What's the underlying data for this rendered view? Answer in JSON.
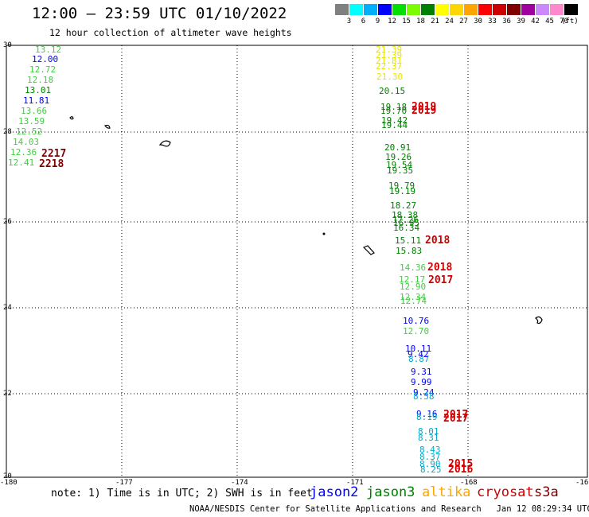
{
  "header": {
    "title": "12:00 – 23:59 UTC 01/10/2022",
    "subtitle": "12 hour collection of altimeter wave heights"
  },
  "colorbar": {
    "colors": [
      "#808080",
      "#00ffff",
      "#00b0ff",
      "#0000ff",
      "#00e000",
      "#7cfc00",
      "#008000",
      "#ffff00",
      "#ffd700",
      "#ffa500",
      "#ff0000",
      "#cc0000",
      "#800000",
      "#a000a0",
      "#cc88ff",
      "#ff88cc",
      "#000000"
    ],
    "labels": [
      "3",
      "6",
      "9",
      "12",
      "15",
      "18",
      "21",
      "24",
      "27",
      "30",
      "33",
      "36",
      "39",
      "42",
      "45",
      "70"
    ],
    "unit": "(ft)"
  },
  "map": {
    "y_labels": [
      "30",
      "28",
      "26",
      "24",
      "22",
      "20"
    ],
    "x_labels": [
      "-180",
      "-177",
      "-174",
      "-171",
      "-168",
      "-16"
    ],
    "colors": {
      "jason2": "#0000ff",
      "jason3": "#008000",
      "altika": "#ffa500",
      "cryosat": "#cc0000",
      "s3a": "#800000",
      "light_green": "#44cc44",
      "cyan": "#00aacc",
      "yellow": "#e6e600"
    },
    "observations": [
      {
        "t": "13.12",
        "c": "light_green"
      },
      {
        "t": "12.00",
        "c": "jason2"
      },
      {
        "t": "12.72",
        "c": "light_green"
      },
      {
        "t": "12.18",
        "c": "light_green"
      },
      {
        "t": "13.01",
        "c": "jason3"
      },
      {
        "t": "11.81",
        "c": "jason2"
      },
      {
        "t": "13.66",
        "c": "light_green"
      },
      {
        "t": "13.59",
        "c": "light_green"
      },
      {
        "t": "12.52",
        "c": "light_green"
      },
      {
        "t": "14.03",
        "c": "light_green"
      },
      {
        "t": "12.36",
        "c": "light_green"
      },
      {
        "t": "12.41",
        "c": "light_green"
      },
      {
        "t": "21.39",
        "c": "yellow"
      },
      {
        "t": "21.39",
        "c": "yellow"
      },
      {
        "t": "21.81",
        "c": "yellow"
      },
      {
        "t": "22.37",
        "c": "yellow"
      },
      {
        "t": "21.30",
        "c": "yellow"
      },
      {
        "t": "20.15",
        "c": "jason3"
      },
      {
        "t": "19.18",
        "c": "jason3"
      },
      {
        "t": "19.70",
        "c": "jason3"
      },
      {
        "t": "19.42",
        "c": "jason3"
      },
      {
        "t": "19.44",
        "c": "jason3"
      },
      {
        "t": "20.91",
        "c": "jason3"
      },
      {
        "t": "19.26",
        "c": "jason3"
      },
      {
        "t": "19.54",
        "c": "jason3"
      },
      {
        "t": "19.35",
        "c": "jason3"
      },
      {
        "t": "19.79",
        "c": "jason3"
      },
      {
        "t": "19.19",
        "c": "jason3"
      },
      {
        "t": "18.27",
        "c": "jason3"
      },
      {
        "t": "18.38",
        "c": "jason3"
      },
      {
        "t": "17.26",
        "c": "jason3"
      },
      {
        "t": "16.95",
        "c": "jason3"
      },
      {
        "t": "16.34",
        "c": "jason3"
      },
      {
        "t": "15.11",
        "c": "jason3"
      },
      {
        "t": "15.83",
        "c": "jason3"
      },
      {
        "t": "14.36",
        "c": "light_green"
      },
      {
        "t": "12.17",
        "c": "light_green"
      },
      {
        "t": "12.90",
        "c": "light_green"
      },
      {
        "t": "12.34",
        "c": "light_green"
      },
      {
        "t": "12.74",
        "c": "light_green"
      },
      {
        "t": "10.76",
        "c": "jason2"
      },
      {
        "t": "12.70",
        "c": "light_green"
      },
      {
        "t": "10.11",
        "c": "jason2"
      },
      {
        "t": "9.42",
        "c": "jason2"
      },
      {
        "t": "8.87",
        "c": "cyan"
      },
      {
        "t": "9.31",
        "c": "jason2"
      },
      {
        "t": "9.99",
        "c": "jason2"
      },
      {
        "t": "9.24",
        "c": "jason2"
      },
      {
        "t": "8.58",
        "c": "cyan"
      },
      {
        "t": "9.16",
        "c": "jason2"
      },
      {
        "t": "8.19",
        "c": "cyan"
      },
      {
        "t": "8.01",
        "c": "cyan"
      },
      {
        "t": "8.31",
        "c": "cyan"
      },
      {
        "t": "8.43",
        "c": "cyan"
      },
      {
        "t": "8.37",
        "c": "cyan"
      },
      {
        "t": "8.90",
        "c": "cyan"
      },
      {
        "t": "8.25",
        "c": "cyan"
      }
    ],
    "pass_times": [
      {
        "t": "2217",
        "c": "s3a"
      },
      {
        "t": "2218",
        "c": "s3a"
      },
      {
        "t": "2019",
        "c": "cryosat"
      },
      {
        "t": "2019",
        "c": "cryosat"
      },
      {
        "t": "2018",
        "c": "cryosat"
      },
      {
        "t": "2018",
        "c": "cryosat"
      },
      {
        "t": "2017",
        "c": "cryosat"
      },
      {
        "t": "2017",
        "c": "cryosat"
      },
      {
        "t": "2017",
        "c": "cryosat"
      },
      {
        "t": "2015",
        "c": "cryosat"
      },
      {
        "t": "2016",
        "c": "cryosat"
      }
    ]
  },
  "footer": {
    "note": "note: 1) Time is in UTC; 2) SWH is in feet",
    "satellites": [
      {
        "name": "jason2",
        "color": "#0000ff"
      },
      {
        "name": "jason3",
        "color": "#008000"
      },
      {
        "name": "altika",
        "color": "#ffa500"
      },
      {
        "name": "cryosat",
        "color": "#cc0000"
      },
      {
        "name": "s3a",
        "color": "#800000"
      }
    ],
    "credit": "NOAA/NESDIS Center for Satellite Applications and Research   Jan 12 08:29:34 UTC 2022"
  }
}
